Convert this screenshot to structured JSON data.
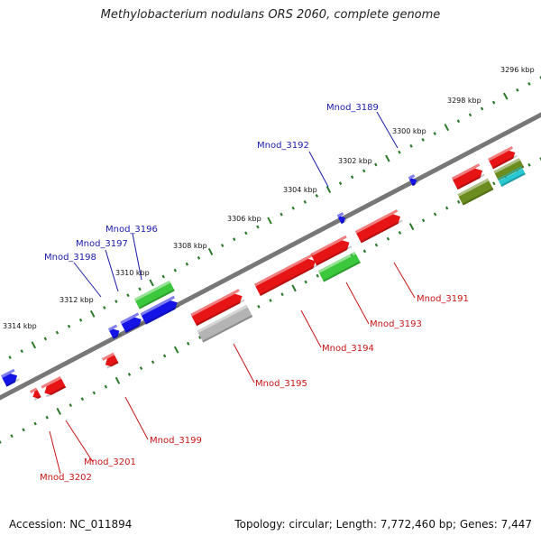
{
  "header": {
    "title": "Methylobacterium nodulans ORS 2060, complete genome"
  },
  "footer": {
    "accession": "Accession: NC_011894",
    "summary": "Topology: circular; Length: 7,772,460 bp; Genes: 7,447"
  },
  "scale_labels": [
    "3296 kbp",
    "3298 kbp",
    "3300 kbp",
    "3302 kbp",
    "3304 kbp",
    "3306 kbp",
    "3308 kbp",
    "3310 kbp",
    "3312 kbp",
    "3314 kbp"
  ],
  "gene_labels": {
    "forward": [
      "Mnod_3189",
      "Mnod_3192",
      "Mnod_3196",
      "Mnod_3197",
      "Mnod_3198"
    ],
    "reverse": [
      "Mnod_3191",
      "Mnod_3193",
      "Mnod_3194",
      "Mnod_3195",
      "Mnod_3199",
      "Mnod_3201",
      "Mnod_3202"
    ]
  },
  "colors": {
    "forward_label": "#1a1aa8",
    "reverse_label": "#c81414",
    "backbone": "#777777",
    "tick": "#2a7a2a",
    "red_gene": "#e61414",
    "blue_gene": "#1414e6",
    "green_gene": "#3cc83c",
    "olive_gene": "#6b8c1e",
    "cyan_gene": "#28c8d2",
    "gray_gene": "#b4b4b4"
  }
}
